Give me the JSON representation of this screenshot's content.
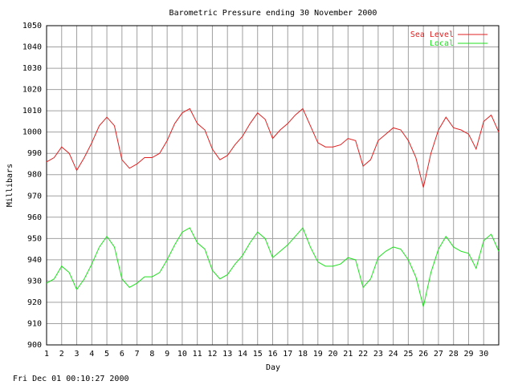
{
  "chart_data": {
    "type": "line",
    "title": "Barometric Pressure ending 30 November 2000",
    "x_label": "Day",
    "y_label": "Millibars",
    "timestamp": "Fri Dec 01 00:10:27 2000",
    "x": [
      1,
      1.5,
      2,
      2.5,
      3,
      3.5,
      4,
      4.5,
      5,
      5.5,
      6,
      6.5,
      7,
      7.5,
      8,
      8.5,
      9,
      9.5,
      10,
      10.5,
      11,
      11.5,
      12,
      12.5,
      13,
      13.5,
      14,
      14.5,
      15,
      15.5,
      16,
      16.5,
      17,
      17.5,
      18,
      18.5,
      19,
      19.5,
      20,
      20.5,
      21,
      21.5,
      22,
      22.5,
      23,
      23.5,
      24,
      24.5,
      25,
      25.5,
      26,
      26.5,
      27,
      27.5,
      28,
      28.5,
      29,
      29.5,
      30,
      30.5,
      31
    ],
    "series": [
      {
        "name": "Sea Level",
        "color": "#e02020",
        "values": [
          986,
          988,
          993,
          990,
          982,
          988,
          995,
          1003,
          1007,
          1003,
          987,
          983,
          985,
          988,
          988,
          990,
          996,
          1004,
          1009,
          1011,
          1004,
          1001,
          992,
          987,
          989,
          994,
          998,
          1004,
          1009,
          1006,
          997,
          1001,
          1004,
          1008,
          1011,
          1003,
          995,
          993,
          993,
          994,
          997,
          996,
          984,
          987,
          996,
          999,
          1002,
          1001,
          996,
          988,
          974,
          990,
          1001,
          1007,
          1002,
          1001,
          999,
          992,
          1005,
          1008,
          1000
        ]
      },
      {
        "name": "Local",
        "color": "#20e020",
        "values": [
          929,
          931,
          937,
          934,
          926,
          931,
          938,
          946,
          951,
          946,
          931,
          927,
          929,
          932,
          932,
          934,
          940,
          947,
          953,
          955,
          948,
          945,
          935,
          931,
          933,
          938,
          942,
          948,
          953,
          950,
          941,
          944,
          947,
          951,
          955,
          946,
          939,
          937,
          937,
          938,
          941,
          940,
          927,
          931,
          941,
          944,
          946,
          945,
          940,
          932,
          918,
          934,
          945,
          951,
          946,
          944,
          943,
          936,
          949,
          952,
          944
        ]
      }
    ],
    "xlim": [
      1,
      31
    ],
    "ylim": [
      900,
      1050
    ],
    "xticks": [
      1,
      2,
      3,
      4,
      5,
      6,
      7,
      8,
      9,
      10,
      11,
      12,
      13,
      14,
      15,
      16,
      17,
      18,
      19,
      20,
      21,
      22,
      23,
      24,
      25,
      26,
      27,
      28,
      29,
      30
    ],
    "yticks": [
      900,
      910,
      920,
      930,
      940,
      950,
      960,
      970,
      980,
      990,
      1000,
      1010,
      1020,
      1030,
      1040,
      1050
    ],
    "grid": true,
    "legend": "top-right"
  }
}
